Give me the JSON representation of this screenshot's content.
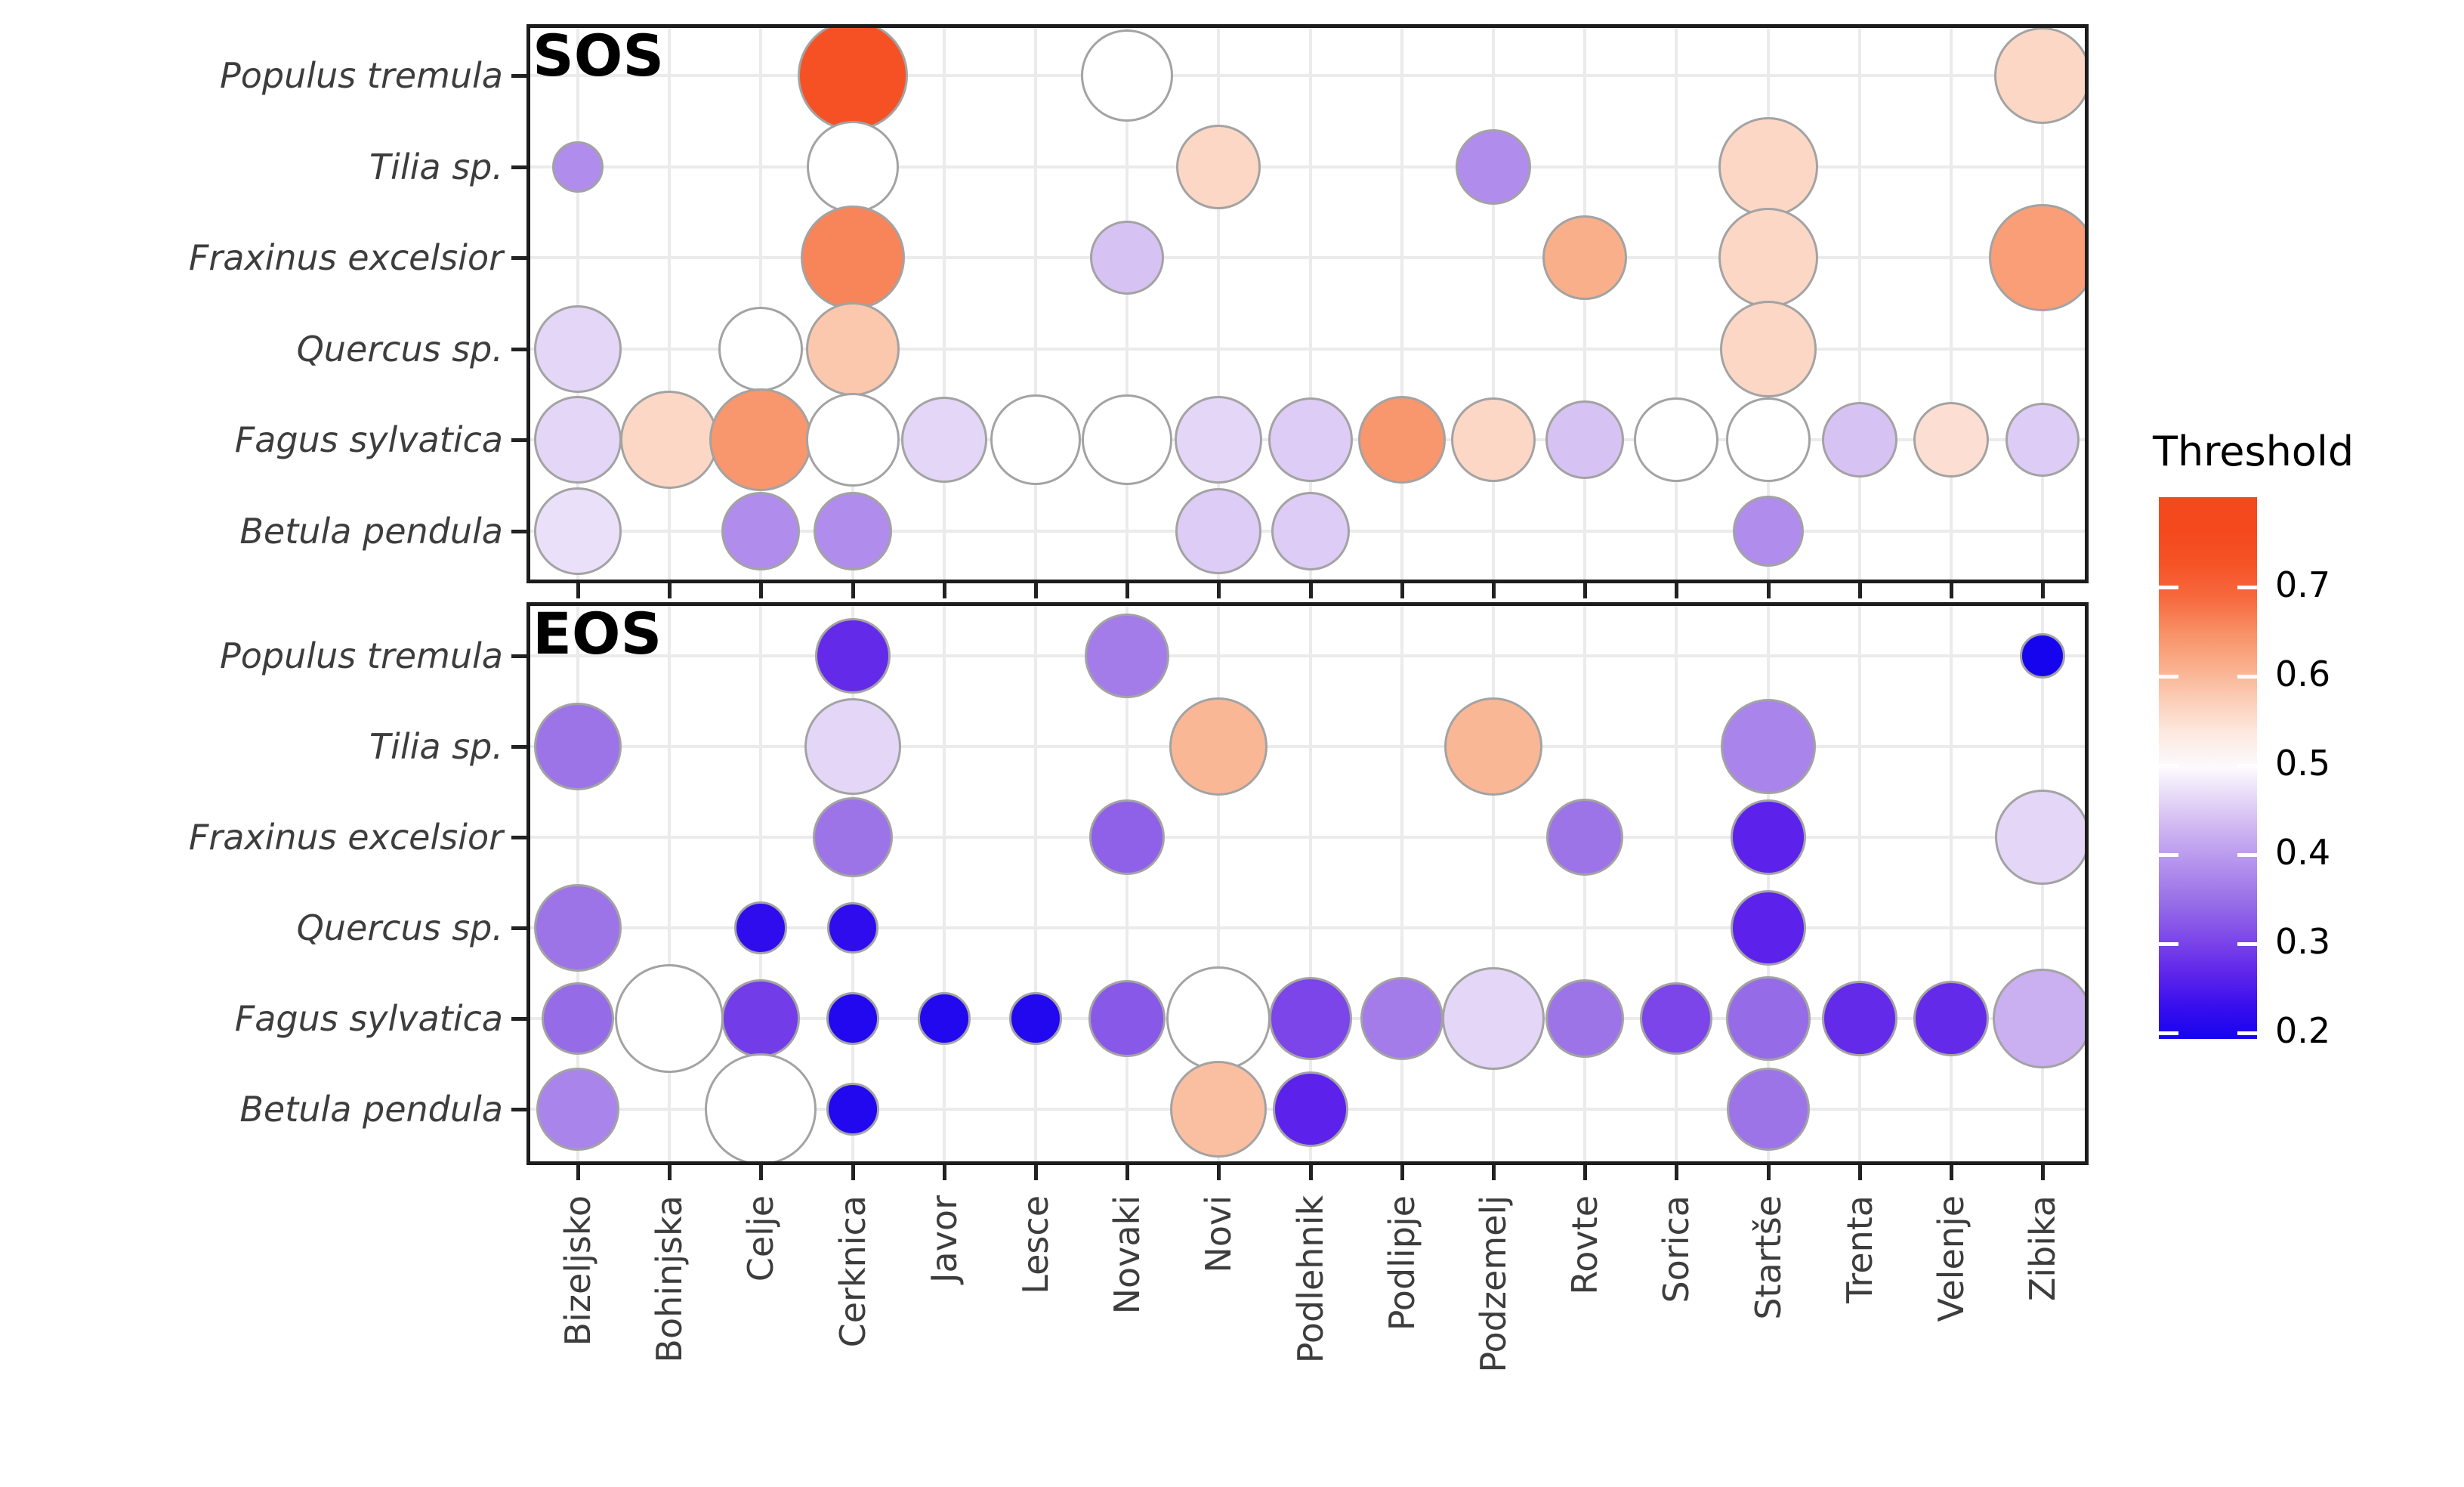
{
  "chart_data": {
    "type": "bubble-matrix",
    "facets": [
      "SOS",
      "EOS"
    ],
    "x_categories": [
      "Bizeljsko",
      "Bohinjska",
      "Celje",
      "Cerknica",
      "Javor",
      "Lesce",
      "Novaki",
      "Novi",
      "Podlehnik",
      "Podlipje",
      "Podzemelj",
      "Rovte",
      "Sorica",
      "Startše",
      "Trenta",
      "Velenje",
      "Zibika"
    ],
    "y_categories": [
      "Populus tremula",
      "Tilia sp.",
      "Fraxinus excelsior",
      "Quercus sp.",
      "Fagus sylvatica",
      "Betula pendula"
    ],
    "legend": {
      "title": "Threshold",
      "tick_labels": [
        "0.7",
        "0.6",
        "0.5",
        "0.4",
        "0.3",
        "0.2"
      ],
      "tick_values": [
        0.7,
        0.6,
        0.5,
        0.4,
        0.3,
        0.2
      ],
      "bar_value_top": 0.8,
      "bar_value_bottom": 0.19,
      "low_color": "#1604EF",
      "mid_color": "#FFFFFF",
      "high_color": "#F4491D",
      "position": "right"
    },
    "grid": "on",
    "points": {
      "SOS": [
        {
          "species": "Populus tremula",
          "site": "Cerknica",
          "threshold": 0.73,
          "size": 73
        },
        {
          "species": "Populus tremula",
          "site": "Novaki",
          "threshold": 0.5,
          "size": 61
        },
        {
          "species": "Populus tremula",
          "site": "Zibika",
          "threshold": 0.56,
          "size": 64
        },
        {
          "species": "Tilia sp.",
          "site": "Bizeljsko",
          "threshold": 0.38,
          "size": 34
        },
        {
          "species": "Tilia sp.",
          "site": "Cerknica",
          "threshold": 0.5,
          "size": 61
        },
        {
          "species": "Tilia sp.",
          "site": "Novi",
          "threshold": 0.56,
          "size": 56
        },
        {
          "species": "Tilia sp.",
          "site": "Podzemelj",
          "threshold": 0.38,
          "size": 50
        },
        {
          "species": "Tilia sp.",
          "site": "Startše",
          "threshold": 0.56,
          "size": 66
        },
        {
          "species": "Fraxinus excelsior",
          "site": "Cerknica",
          "threshold": 0.66,
          "size": 69
        },
        {
          "species": "Fraxinus excelsior",
          "site": "Novaki",
          "threshold": 0.44,
          "size": 49
        },
        {
          "species": "Fraxinus excelsior",
          "site": "Rovte",
          "threshold": 0.61,
          "size": 56
        },
        {
          "species": "Fraxinus excelsior",
          "site": "Startše",
          "threshold": 0.56,
          "size": 66
        },
        {
          "species": "Fraxinus excelsior",
          "site": "Zibika",
          "threshold": 0.63,
          "size": 71
        },
        {
          "species": "Quercus sp.",
          "site": "Bizeljsko",
          "threshold": 0.46,
          "size": 58
        },
        {
          "species": "Quercus sp.",
          "site": "Celje",
          "threshold": 0.5,
          "size": 56
        },
        {
          "species": "Quercus sp.",
          "site": "Cerknica",
          "threshold": 0.58,
          "size": 62
        },
        {
          "species": "Quercus sp.",
          "site": "Startše",
          "threshold": 0.56,
          "size": 64
        },
        {
          "species": "Fagus sylvatica",
          "site": "Bizeljsko",
          "threshold": 0.46,
          "size": 58
        },
        {
          "species": "Fagus sylvatica",
          "site": "Bohinjska",
          "threshold": 0.56,
          "size": 65
        },
        {
          "species": "Fagus sylvatica",
          "site": "Celje",
          "threshold": 0.64,
          "size": 68
        },
        {
          "species": "Fagus sylvatica",
          "site": "Cerknica",
          "threshold": 0.5,
          "size": 62
        },
        {
          "species": "Fagus sylvatica",
          "site": "Javor",
          "threshold": 0.46,
          "size": 57
        },
        {
          "species": "Fagus sylvatica",
          "site": "Lesce",
          "threshold": 0.5,
          "size": 60
        },
        {
          "species": "Fagus sylvatica",
          "site": "Novaki",
          "threshold": 0.5,
          "size": 60
        },
        {
          "species": "Fagus sylvatica",
          "site": "Novi",
          "threshold": 0.46,
          "size": 58
        },
        {
          "species": "Fagus sylvatica",
          "site": "Podlehnik",
          "threshold": 0.45,
          "size": 56
        },
        {
          "species": "Fagus sylvatica",
          "site": "Podlipje",
          "threshold": 0.64,
          "size": 58
        },
        {
          "species": "Fagus sylvatica",
          "site": "Podzemelj",
          "threshold": 0.56,
          "size": 56
        },
        {
          "species": "Fagus sylvatica",
          "site": "Rovte",
          "threshold": 0.44,
          "size": 52
        },
        {
          "species": "Fagus sylvatica",
          "site": "Sorica",
          "threshold": 0.5,
          "size": 56
        },
        {
          "species": "Fagus sylvatica",
          "site": "Startše",
          "threshold": 0.5,
          "size": 56
        },
        {
          "species": "Fagus sylvatica",
          "site": "Trenta",
          "threshold": 0.44,
          "size": 50
        },
        {
          "species": "Fagus sylvatica",
          "site": "Velenje",
          "threshold": 0.55,
          "size": 50
        },
        {
          "species": "Fagus sylvatica",
          "site": "Zibika",
          "threshold": 0.45,
          "size": 49
        },
        {
          "species": "Betula pendula",
          "site": "Bizeljsko",
          "threshold": 0.47,
          "size": 58
        },
        {
          "species": "Betula pendula",
          "site": "Celje",
          "threshold": 0.38,
          "size": 52
        },
        {
          "species": "Betula pendula",
          "site": "Cerknica",
          "threshold": 0.38,
          "size": 52
        },
        {
          "species": "Betula pendula",
          "site": "Novi",
          "threshold": 0.45,
          "size": 57
        },
        {
          "species": "Betula pendula",
          "site": "Podlehnik",
          "threshold": 0.45,
          "size": 52
        },
        {
          "species": "Betula pendula",
          "site": "Startše",
          "threshold": 0.38,
          "size": 47
        }
      ],
      "EOS": [
        {
          "species": "Populus tremula",
          "site": "Cerknica",
          "threshold": 0.27,
          "size": 50
        },
        {
          "species": "Populus tremula",
          "site": "Novaki",
          "threshold": 0.36,
          "size": 56
        },
        {
          "species": "Populus tremula",
          "site": "Zibika",
          "threshold": 0.2,
          "size": 30
        },
        {
          "species": "Tilia sp.",
          "site": "Bizeljsko",
          "threshold": 0.35,
          "size": 58
        },
        {
          "species": "Tilia sp.",
          "site": "Cerknica",
          "threshold": 0.46,
          "size": 64
        },
        {
          "species": "Tilia sp.",
          "site": "Novi",
          "threshold": 0.6,
          "size": 65
        },
        {
          "species": "Tilia sp.",
          "site": "Podzemelj",
          "threshold": 0.6,
          "size": 65
        },
        {
          "species": "Tilia sp.",
          "site": "Startše",
          "threshold": 0.37,
          "size": 63
        },
        {
          "species": "Fraxinus excelsior",
          "site": "Cerknica",
          "threshold": 0.35,
          "size": 53
        },
        {
          "species": "Fraxinus excelsior",
          "site": "Novaki",
          "threshold": 0.33,
          "size": 50
        },
        {
          "species": "Fraxinus excelsior",
          "site": "Rovte",
          "threshold": 0.35,
          "size": 51
        },
        {
          "species": "Fraxinus excelsior",
          "site": "Startše",
          "threshold": 0.26,
          "size": 50
        },
        {
          "species": "Fraxinus excelsior",
          "site": "Zibika",
          "threshold": 0.46,
          "size": 63
        },
        {
          "species": "Quercus sp.",
          "site": "Bizeljsko",
          "threshold": 0.35,
          "size": 58
        },
        {
          "species": "Quercus sp.",
          "site": "Celje",
          "threshold": 0.22,
          "size": 35
        },
        {
          "species": "Quercus sp.",
          "site": "Cerknica",
          "threshold": 0.22,
          "size": 34
        },
        {
          "species": "Quercus sp.",
          "site": "Startše",
          "threshold": 0.26,
          "size": 50
        },
        {
          "species": "Fagus sylvatica",
          "site": "Bizeljsko",
          "threshold": 0.34,
          "size": 48
        },
        {
          "species": "Fagus sylvatica",
          "site": "Bohinjska",
          "threshold": 0.5,
          "size": 72
        },
        {
          "species": "Fagus sylvatica",
          "site": "Celje",
          "threshold": 0.29,
          "size": 52
        },
        {
          "species": "Fagus sylvatica",
          "site": "Cerknica",
          "threshold": 0.21,
          "size": 35
        },
        {
          "species": "Fagus sylvatica",
          "site": "Javor",
          "threshold": 0.21,
          "size": 35
        },
        {
          "species": "Fagus sylvatica",
          "site": "Lesce",
          "threshold": 0.21,
          "size": 35
        },
        {
          "species": "Fagus sylvatica",
          "site": "Novaki",
          "threshold": 0.32,
          "size": 51
        },
        {
          "species": "Fagus sylvatica",
          "site": "Novi",
          "threshold": 0.5,
          "size": 69
        },
        {
          "species": "Fagus sylvatica",
          "site": "Podlehnik",
          "threshold": 0.3,
          "size": 55
        },
        {
          "species": "Fagus sylvatica",
          "site": "Podlipje",
          "threshold": 0.36,
          "size": 55
        },
        {
          "species": "Fagus sylvatica",
          "site": "Podzemelj",
          "threshold": 0.46,
          "size": 68
        },
        {
          "species": "Fagus sylvatica",
          "site": "Rovte",
          "threshold": 0.35,
          "size": 52
        },
        {
          "species": "Fagus sylvatica",
          "site": "Sorica",
          "threshold": 0.3,
          "size": 48
        },
        {
          "species": "Fagus sylvatica",
          "site": "Startše",
          "threshold": 0.34,
          "size": 56
        },
        {
          "species": "Fagus sylvatica",
          "site": "Trenta",
          "threshold": 0.27,
          "size": 50
        },
        {
          "species": "Fagus sylvatica",
          "site": "Velenje",
          "threshold": 0.27,
          "size": 50
        },
        {
          "species": "Fagus sylvatica",
          "site": "Zibika",
          "threshold": 0.42,
          "size": 66
        },
        {
          "species": "Betula pendula",
          "site": "Bizeljsko",
          "threshold": 0.37,
          "size": 55
        },
        {
          "species": "Betula pendula",
          "site": "Celje",
          "threshold": 0.5,
          "size": 74
        },
        {
          "species": "Betula pendula",
          "site": "Cerknica",
          "threshold": 0.21,
          "size": 35
        },
        {
          "species": "Betula pendula",
          "site": "Novi",
          "threshold": 0.59,
          "size": 64
        },
        {
          "species": "Betula pendula",
          "site": "Podlehnik",
          "threshold": 0.26,
          "size": 50
        },
        {
          "species": "Betula pendula",
          "site": "Startše",
          "threshold": 0.35,
          "size": 55
        }
      ]
    }
  }
}
